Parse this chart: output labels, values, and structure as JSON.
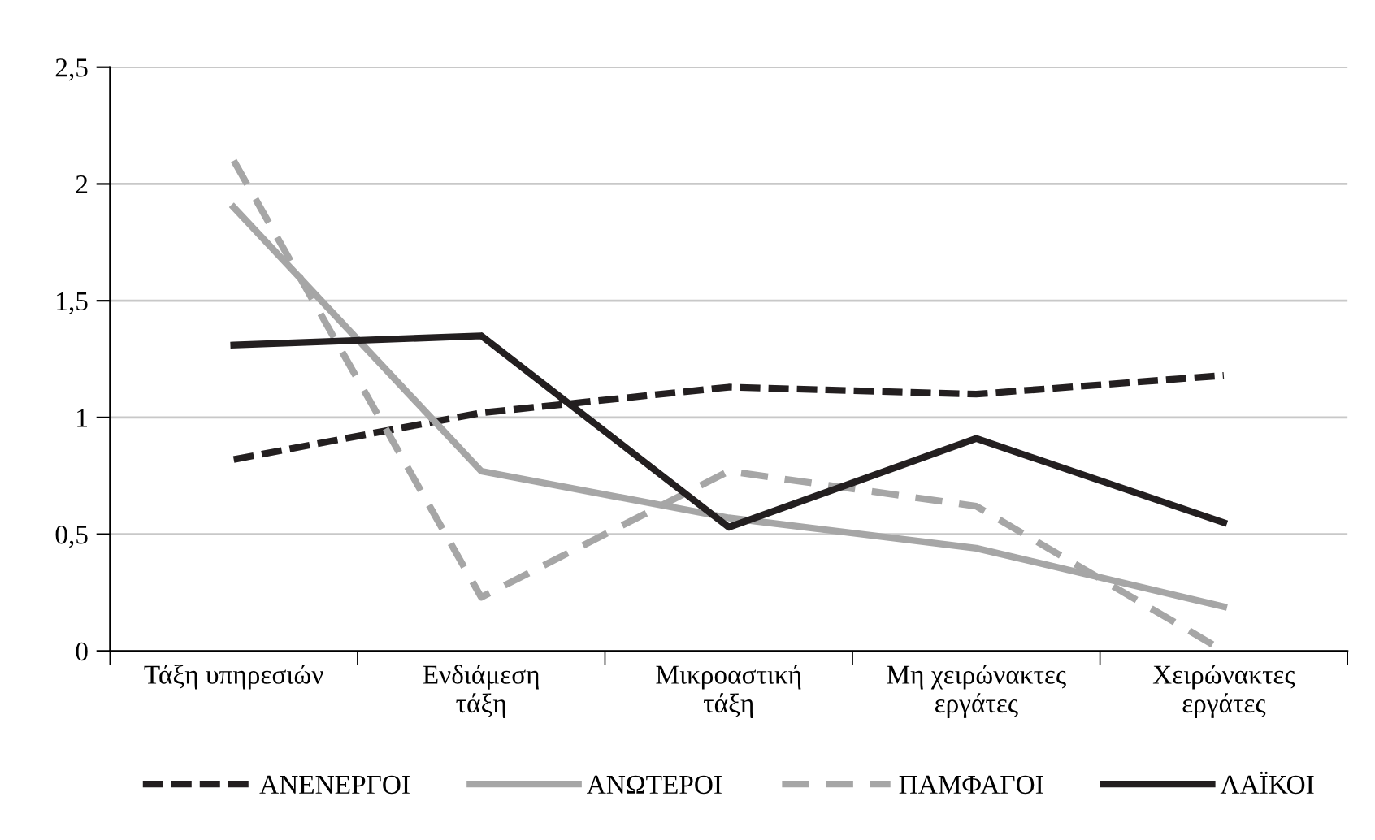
{
  "chart_data": {
    "type": "line",
    "categories": [
      "Τάξη υπηρεσιών",
      "Ενδιάμεση\nτάξη",
      "Μικροαστική\nτάξη",
      "Μη χειρώνακτες\nεργάτες",
      "Χειρώνακτες\nεργάτες"
    ],
    "series": [
      {
        "name": "ΑΝΕΝΕΡΓΟΙ",
        "color": "#231f20",
        "line_style": "dashed",
        "values": [
          0.82,
          1.02,
          1.13,
          1.1,
          1.18
        ]
      },
      {
        "name": "ΑΝΩΤΕΡΟΙ",
        "color": "#a6a6a6",
        "line_style": "solid",
        "values": [
          1.9,
          0.77,
          0.57,
          0.44,
          0.19
        ]
      },
      {
        "name": "ΠΑΜΦΑΓΟΙ",
        "color": "#a6a6a6",
        "line_style": "dashed",
        "values": [
          2.1,
          0.23,
          0.77,
          0.62,
          0.0
        ]
      },
      {
        "name": "ΛΑΪΚΟΙ",
        "color": "#231f20",
        "line_style": "solid",
        "values": [
          1.31,
          1.35,
          0.53,
          0.91,
          0.55
        ]
      }
    ],
    "ylim": [
      0,
      2.5
    ],
    "yticks": [
      0,
      {
        "value": 0.5,
        "label": "0,5"
      },
      1,
      {
        "value": 1.5,
        "label": "1,5"
      },
      2,
      {
        "value": 2.5,
        "label": "2,5"
      }
    ],
    "grid": "y",
    "legend": "bottom",
    "marker": "none"
  }
}
